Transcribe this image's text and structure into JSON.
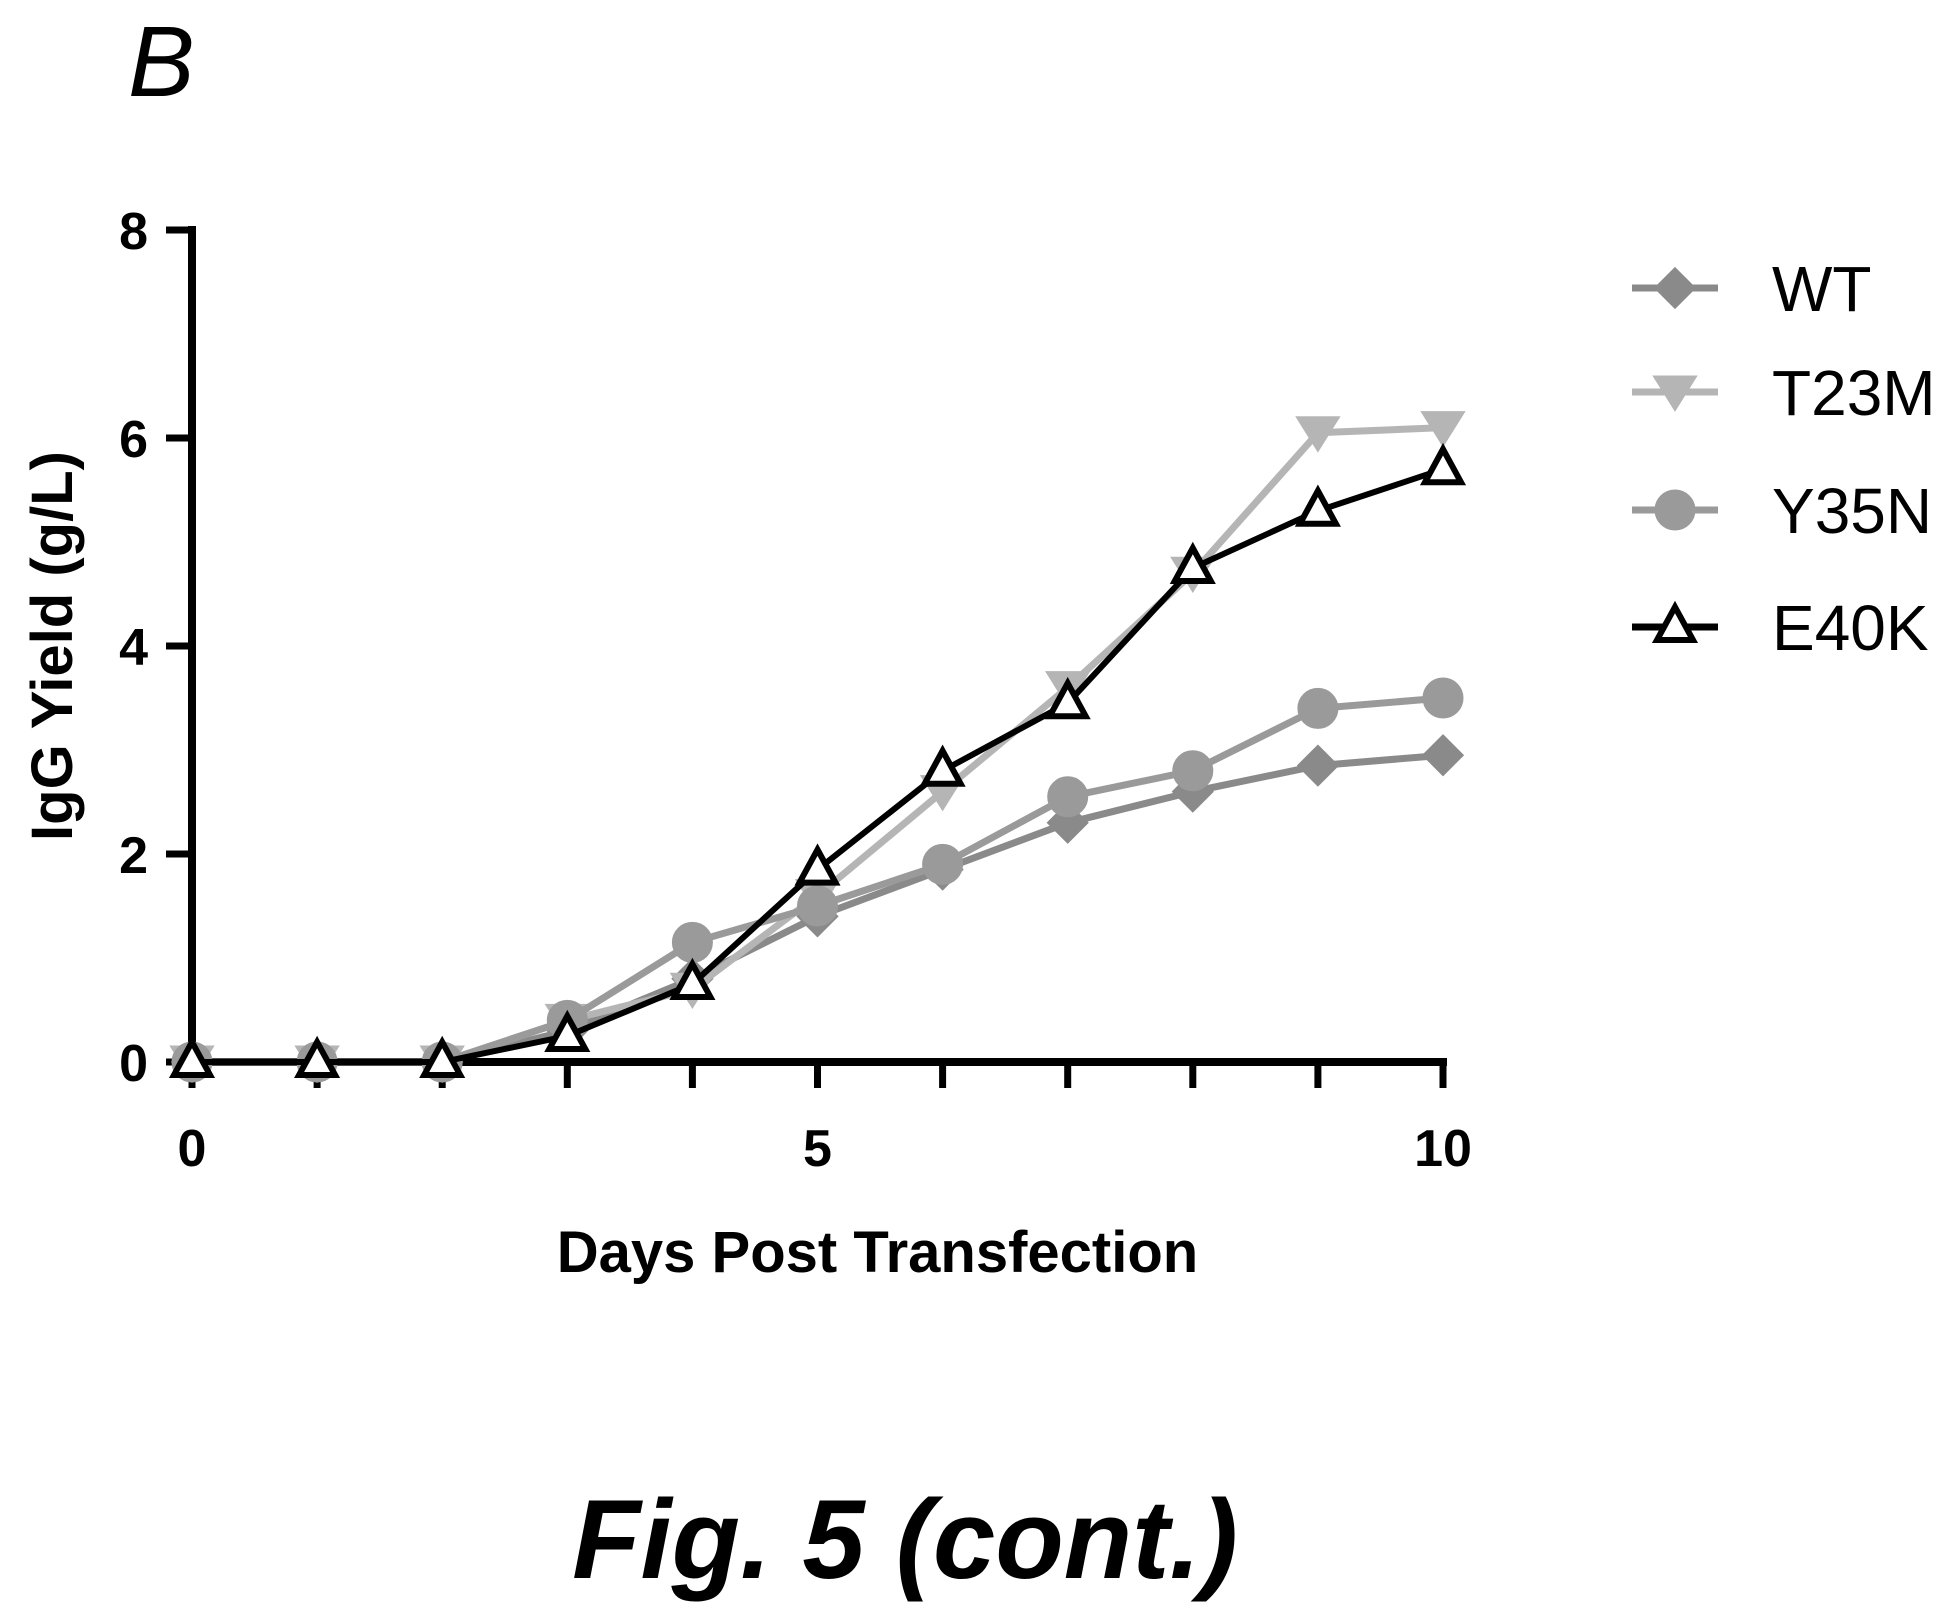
{
  "panel_label": "B",
  "caption": "Fig. 5 (cont.)",
  "chart_data": {
    "type": "line",
    "xlabel": "Days Post Transfection",
    "ylabel": "IgG Yield (g/L)",
    "xlim": [
      0,
      10
    ],
    "ylim": [
      0,
      8
    ],
    "xticks": [
      0,
      5,
      10
    ],
    "yticks": [
      0,
      2,
      4,
      6,
      8
    ],
    "grid": false,
    "legend_position": "right",
    "x": [
      0,
      1,
      2,
      3,
      4,
      5,
      6,
      7,
      8,
      9,
      10
    ],
    "series": [
      {
        "name": "WT",
        "marker": "diamond",
        "color": "#8a8a8a",
        "values": [
          0,
          0,
          0,
          0.3,
          0.8,
          1.4,
          1.85,
          2.3,
          2.6,
          2.85,
          2.95
        ]
      },
      {
        "name": "T23M",
        "marker": "tri-down",
        "color": "#b5b5b5",
        "values": [
          0,
          0,
          0,
          0.4,
          0.7,
          1.6,
          2.6,
          3.6,
          4.7,
          6.05,
          6.1
        ]
      },
      {
        "name": "Y35N",
        "marker": "circle",
        "color": "#9a9a9a",
        "values": [
          0,
          0,
          0,
          0.4,
          1.15,
          1.5,
          1.9,
          2.55,
          2.8,
          3.4,
          3.5
        ]
      },
      {
        "name": "E40K",
        "marker": "triangle-open",
        "color": "#000000",
        "values": [
          0,
          0,
          0,
          0.25,
          0.75,
          1.85,
          2.8,
          3.45,
          4.75,
          5.3,
          5.7
        ]
      }
    ]
  }
}
